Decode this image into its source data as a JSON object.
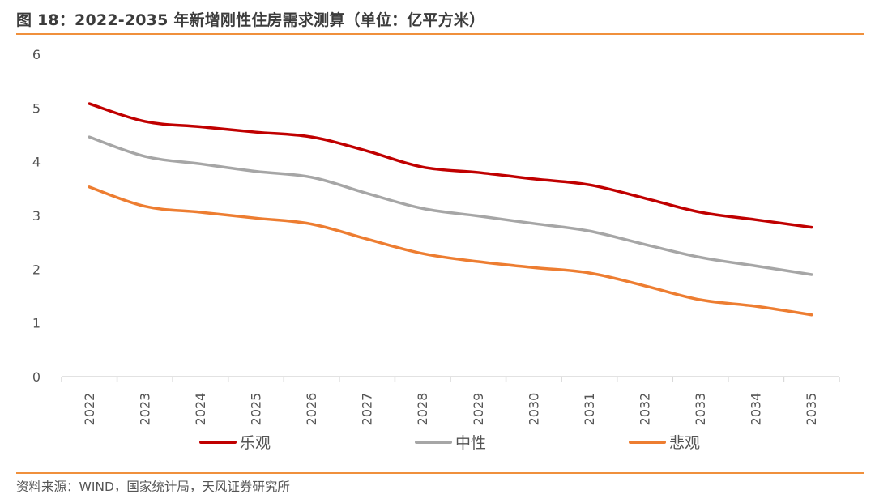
{
  "header": {
    "title": "图 18：2022-2035 年新增刚性住房需求测算（单位：亿平方米）"
  },
  "footer": {
    "source": "资料来源：WIND，国家统计局，天风证券研究所"
  },
  "colors": {
    "accent_rule": "#f0903c",
    "axis": "#d9d9d9"
  },
  "chart_data": {
    "type": "line",
    "title": "2022-2035 年新增刚性住房需求测算（单位：亿平方米）",
    "xlabel": "",
    "ylabel": "",
    "categories": [
      "2022",
      "2023",
      "2024",
      "2025",
      "2026",
      "2027",
      "2028",
      "2029",
      "2030",
      "2031",
      "2032",
      "2033",
      "2034",
      "2035"
    ],
    "ylim": [
      0,
      6
    ],
    "yticks": [
      0,
      1,
      2,
      3,
      4,
      5,
      6
    ],
    "grid": false,
    "legend_position": "bottom",
    "smooth": true,
    "series": [
      {
        "name": "乐观",
        "color": "#c00000",
        "values": [
          5.08,
          4.75,
          4.65,
          4.55,
          4.46,
          4.2,
          3.9,
          3.8,
          3.68,
          3.57,
          3.32,
          3.06,
          2.92,
          2.78
        ]
      },
      {
        "name": "中性",
        "color": "#a6a6a6",
        "values": [
          4.46,
          4.1,
          3.96,
          3.82,
          3.71,
          3.41,
          3.13,
          2.99,
          2.85,
          2.71,
          2.46,
          2.22,
          2.06,
          1.9
        ]
      },
      {
        "name": "悲观",
        "color": "#ed7d31",
        "values": [
          3.53,
          3.17,
          3.06,
          2.95,
          2.84,
          2.56,
          2.29,
          2.14,
          2.03,
          1.93,
          1.69,
          1.43,
          1.31,
          1.15
        ]
      }
    ]
  }
}
